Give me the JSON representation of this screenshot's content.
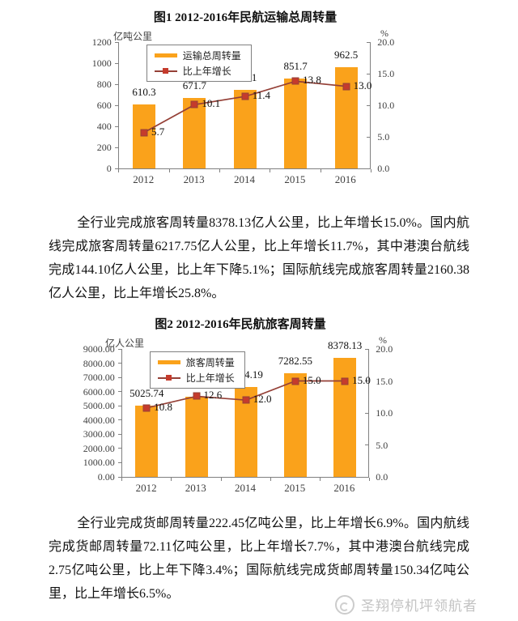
{
  "chart_data": [
    {
      "type": "bar",
      "title": "图1 2012-2016年民航运输总周转量",
      "categories": [
        "2012",
        "2013",
        "2014",
        "2015",
        "2016"
      ],
      "series": [
        {
          "name": "运输总周转量",
          "kind": "bar",
          "axis": "left",
          "values": [
            610.3,
            671.7,
            748.1,
            851.7,
            962.5
          ],
          "labels": [
            "610.3",
            "671.7",
            "748.1",
            "851.7",
            "962.5"
          ],
          "color": "#FAA21B"
        },
        {
          "name": "比上年增长",
          "kind": "line",
          "axis": "right",
          "values": [
            5.7,
            10.1,
            11.4,
            13.8,
            13.0
          ],
          "labels": [
            "5.7",
            "10.1",
            "11.4",
            "13.8",
            "13.0"
          ],
          "color": "#954037",
          "marker_color": "#C53B2C"
        }
      ],
      "left_axis": {
        "unit": "亿吨公里",
        "min": 0,
        "max": 1200,
        "step": 200,
        "ticks": [
          "1200",
          "1000",
          "800",
          "600",
          "400",
          "200",
          "0"
        ]
      },
      "right_axis": {
        "unit": "%",
        "min": 0,
        "max": 20,
        "step": 5,
        "ticks": [
          "20.0",
          "15.0",
          "10.0",
          "5.0",
          "0.0"
        ]
      },
      "legend_position": "top-left",
      "grid": false
    },
    {
      "type": "bar",
      "title": "图2 2012-2016年民航旅客周转量",
      "categories": [
        "2012",
        "2013",
        "2014",
        "2015",
        "2016"
      ],
      "series": [
        {
          "name": "旅客周转量",
          "kind": "bar",
          "axis": "left",
          "values": [
            5025.74,
            5656.76,
            6334.19,
            7282.55,
            8378.13
          ],
          "labels": [
            "5025.74",
            "5656.76",
            "6334.19",
            "7282.55",
            "8378.13"
          ],
          "color": "#FAA21B"
        },
        {
          "name": "比上年增长",
          "kind": "line",
          "axis": "right",
          "values": [
            10.8,
            12.6,
            12.0,
            15.0,
            15.0
          ],
          "labels": [
            "10.8",
            "12.6",
            "12.0",
            "15.0",
            "15.0"
          ],
          "color": "#954037",
          "marker_color": "#C53B2C"
        }
      ],
      "left_axis": {
        "unit": "亿人公里",
        "min": 0,
        "max": 9000,
        "step": 1000,
        "ticks": [
          "9000.00",
          "8000.00",
          "7000.00",
          "6000.00",
          "5000.00",
          "4000.00",
          "3000.00",
          "2000.00",
          "1000.00",
          "0.00"
        ]
      },
      "right_axis": {
        "unit": "%",
        "min": 0,
        "max": 20,
        "step": 5,
        "ticks": [
          "20.0",
          "15.0",
          "10.0",
          "5.0",
          "0.0"
        ]
      },
      "legend_position": "top-left",
      "grid": false
    }
  ],
  "paragraphs": [
    "全行业完成旅客周转量8378.13亿人公里，比上年增长15.0%。国内航线完成旅客周转量6217.75亿人公里，比上年增长11.7%，其中港澳台航线完成144.10亿人公里，比上年下降5.1%；国际航线完成旅客周转量2160.38亿人公里，比上年增长25.8%。",
    "全行业完成货邮周转量222.45亿吨公里，比上年增长6.9%。国内航线完成货邮周转量72.11亿吨公里，比上年增长7.7%，其中港澳台航线完成2.75亿吨公里，比上年下降3.4%；国际航线完成货邮周转量150.34亿吨公里，比上年增长6.5%。"
  ],
  "watermark": {
    "text": "圣翔停机坪领航者"
  },
  "colors": {
    "bar": "#FAA21B",
    "line": "#954037",
    "marker": "#C53B2C",
    "axis": "#808080"
  }
}
